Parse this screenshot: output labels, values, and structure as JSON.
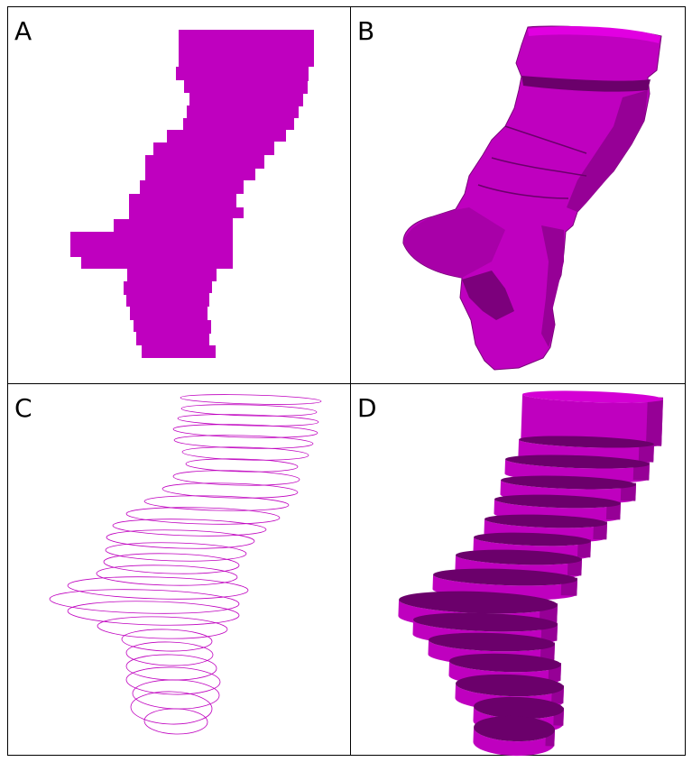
{
  "panels": [
    {
      "label": "A"
    },
    {
      "label": "B"
    },
    {
      "label": "C"
    },
    {
      "label": "D"
    }
  ],
  "colors": {
    "shape": "#bf00bf",
    "shape_dark": "#6b006b",
    "shape_mid": "#960096",
    "border": "#000000",
    "background": "#ffffff"
  }
}
